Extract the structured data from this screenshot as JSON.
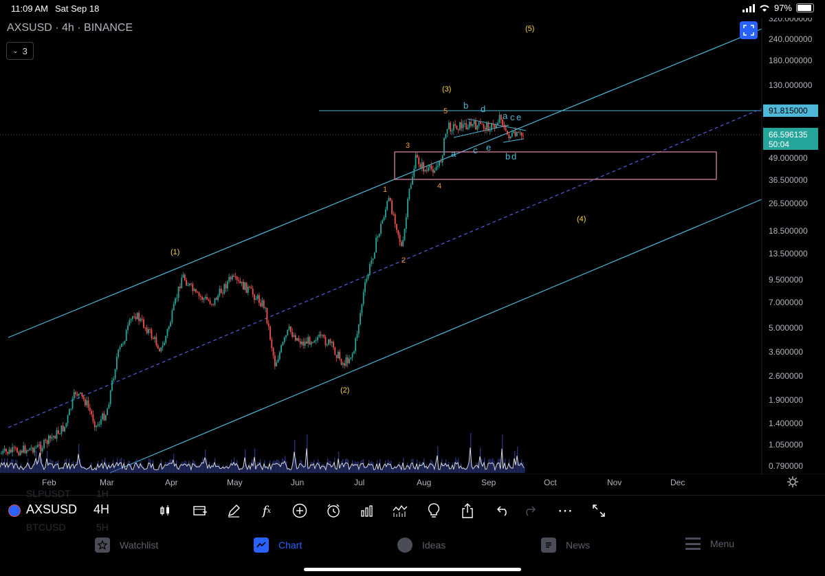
{
  "status": {
    "time": "11:09 AM",
    "date": "Sat Sep 18",
    "battery": "97%"
  },
  "header": {
    "title": "AXSUSD · 4h · BINANCE",
    "indicator_count": "3"
  },
  "price_axis": {
    "ticks": [
      "320.000000",
      "240.000000",
      "180.000000",
      "130.000000",
      "91.815000",
      "66.596135",
      "50:04",
      "49.000000",
      "36.500000",
      "26.500000",
      "18.500000",
      "13.500000",
      "9.500000",
      "7.000000",
      "5.000000",
      "3.600000",
      "2.600000",
      "1.900000",
      "1.400000",
      "1.050000",
      "0.790000"
    ],
    "highlight_price": "91.815000",
    "last_price": "66.596135",
    "countdown": "50:04"
  },
  "time_axis": {
    "labels": [
      "Feb",
      "Mar",
      "Apr",
      "May",
      "Jun",
      "Jul",
      "Aug",
      "Sep",
      "Oct",
      "Nov",
      "Dec"
    ]
  },
  "wave_labels": {
    "w1": "(1)",
    "w2": "(2)",
    "w3": "(3)",
    "w4": "(4)",
    "w5": "(5)",
    "s1": "1",
    "s2": "2",
    "s3": "3",
    "s4": "4",
    "s5": "5",
    "a1": "a",
    "b1": "b",
    "c1": "c",
    "d1": "d",
    "e1": "e",
    "a2": "a",
    "c2": "c",
    "e2": "e",
    "b2": "b",
    "d2": "d"
  },
  "toolbar": {
    "symbol": "AXSUSD",
    "interval": "4H",
    "ghost_top": "SLPUSDT",
    "ghost_top_iv": "1H",
    "ghost_bottom": "BTCUSD",
    "ghost_bottom_iv": "5H"
  },
  "tabs": [
    {
      "label": "Watchlist",
      "icon": "star-icon"
    },
    {
      "label": "Chart",
      "icon": "chart-icon"
    },
    {
      "label": "Ideas",
      "icon": "lightbulb-icon"
    },
    {
      "label": "News",
      "icon": "news-icon"
    },
    {
      "label": "Menu",
      "icon": "menu-icon"
    }
  ],
  "colors": {
    "accent": "#2962ff",
    "channel": "#4fb8d8",
    "candle_up": "#26a69a",
    "candle_down": "#ef5350",
    "wave_major": "#f5d442",
    "wave_minor": "#f59b3a",
    "wave_sub": "#4fb8d8",
    "box": "#e58fa5"
  }
}
